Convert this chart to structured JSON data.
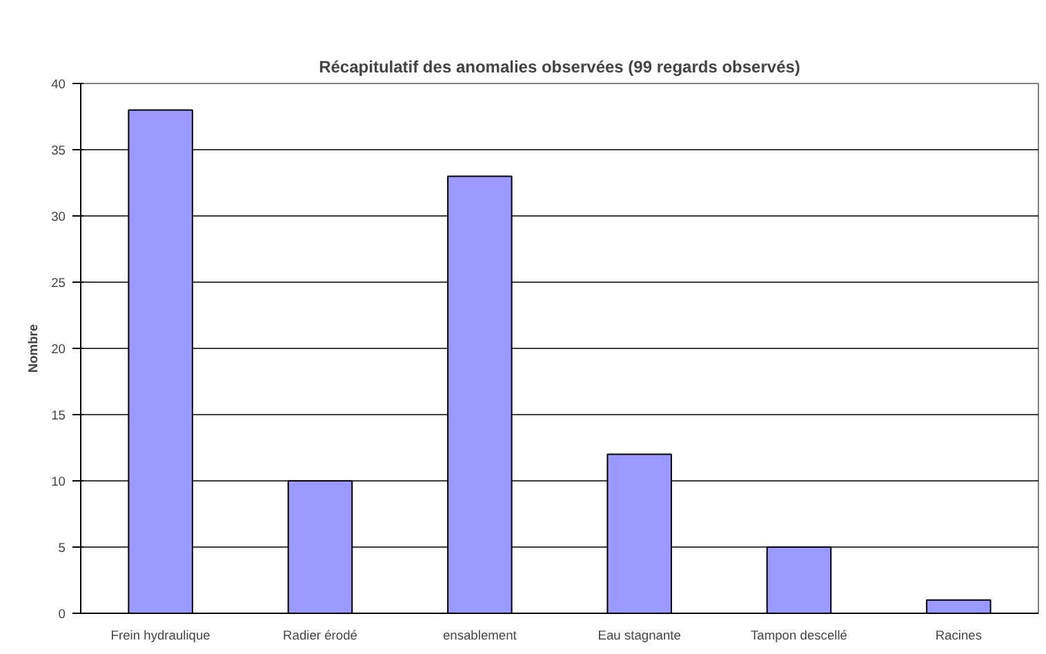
{
  "chart_data": {
    "type": "bar",
    "title": "Récapitulatif des anomalies observées (99 regards observés)",
    "ylabel": "Nombre",
    "categories": [
      "Frein hydraulique",
      "Radier érodé",
      "ensablement",
      "Eau stagnante",
      "Tampon descellé",
      "Racines"
    ],
    "values": [
      38,
      10,
      33,
      12,
      5,
      1
    ],
    "color": "#9999ff",
    "ylim": [
      0,
      40
    ],
    "yticks": [
      0,
      5,
      10,
      15,
      20,
      25,
      30,
      35,
      40
    ],
    "grid": "y"
  }
}
